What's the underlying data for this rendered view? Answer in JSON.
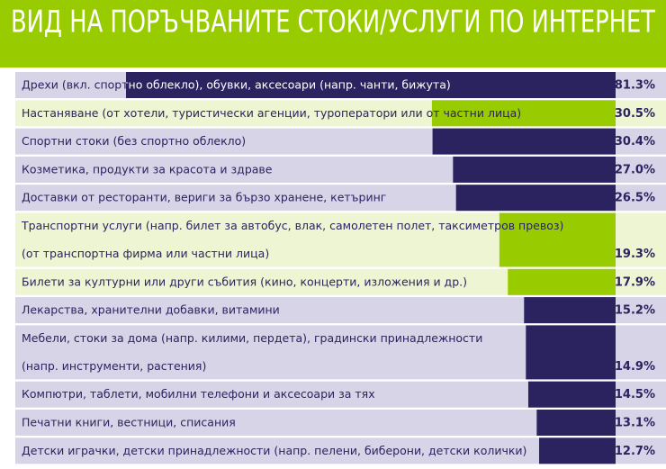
{
  "chart_data": {
    "type": "bar",
    "orientation": "horizontal",
    "title": "ВИД НА ПОРЪЧВАНИТЕ СТОКИ/УСЛУГИ  ПО ИНТЕРНЕТ",
    "categories": [
      [
        "Дрехи (вкл. спортно облекло), обувки, аксесоари (напр. чанти, бижута)"
      ],
      [
        "Настаняване (от хотели, туристически агенции, туроператори или от частни лица)"
      ],
      [
        "Спортни стоки (без спортно облекло)"
      ],
      [
        "Козметика, продукти за красота и здраве"
      ],
      [
        "Доставки от ресторанти, вериги за бързо хранене, кетъринг"
      ],
      [
        "Транспортни услуги (напр. билет за автобус, влак, самолетен полет, таксиметров превоз)",
        "(от транспортна фирма или частни лица)"
      ],
      [
        "Билети за културни или други събития (кино, концерти, изложения и др.)"
      ],
      [
        "Лекарства, хранителни добавки, витамини"
      ],
      [
        "Мебели, стоки за дома (напр. килими, пердета), градински принадлежности",
        "(напр. инструменти, растения)"
      ],
      [
        "Компютри, таблети, мобилни телефони и аксесоари за тях"
      ],
      [
        "Печатни книги, вестници, списания"
      ],
      [
        "Детски играчки, детски принадлежности (напр. пелени, биберони, детски колички)"
      ]
    ],
    "values": [
      81.3,
      30.5,
      30.4,
      27.0,
      26.5,
      19.3,
      17.9,
      15.2,
      14.9,
      14.5,
      13.1,
      12.7
    ],
    "value_labels": [
      "81.3%",
      "30.5%",
      "30.4%",
      "27.0%",
      "26.5%",
      "19.3%",
      "17.9%",
      "15.2%",
      "14.9%",
      "14.5%",
      "13.1%",
      "12.7%"
    ],
    "colors": [
      "#2b2360",
      "#99cc00",
      "#2b2360",
      "#2b2360",
      "#2b2360",
      "#99cc00",
      "#99cc00",
      "#2b2360",
      "#2b2360",
      "#2b2360",
      "#2b2360",
      "#2b2360"
    ]
  }
}
